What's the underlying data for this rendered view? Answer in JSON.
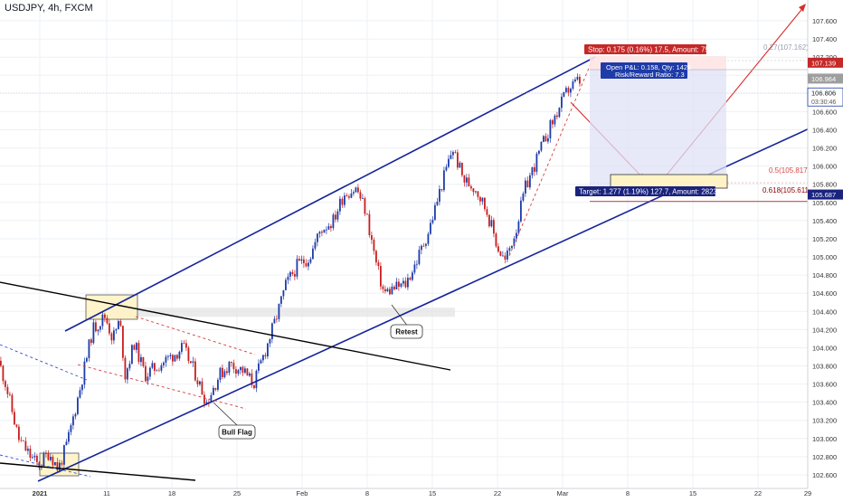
{
  "header": {
    "symbol": "USDJPY, 4h, FXCM"
  },
  "colors": {
    "up": "#1e3ba8",
    "down": "#c81e1e",
    "channel": "#14249a",
    "wedge": "#000000",
    "stop_bg": "#c62828",
    "target_bg": "#1a237e",
    "grid": "#eef0f4",
    "axis_text": "#333333"
  },
  "chart_data": {
    "type": "candlestick",
    "symbol": "USDJPY",
    "timeframe": "4h",
    "ylim": [
      102.45,
      107.72
    ],
    "y_ticks": [
      "107.600",
      "107.400",
      "107.200",
      "107.000",
      "106.800",
      "106.600",
      "106.400",
      "106.200",
      "106.000",
      "105.800",
      "105.600",
      "105.400",
      "105.200",
      "105.000",
      "104.800",
      "104.600",
      "104.400",
      "104.200",
      "104.000",
      "103.800",
      "103.600",
      "103.400",
      "103.200",
      "103.000",
      "102.800",
      "102.600"
    ],
    "x_ticks": [
      "2021",
      "11",
      "18",
      "25",
      "Feb",
      "8",
      "15",
      "22",
      "Mar",
      "8",
      "15",
      "22",
      "29"
    ],
    "price_labels": [
      {
        "text": "107.139",
        "style": "stop"
      },
      {
        "text": "106.964",
        "style": "grey"
      },
      {
        "text": "106.806",
        "style": "current"
      },
      {
        "text": "03:30:46",
        "style": "countdown"
      },
      {
        "text": "105.687",
        "style": "target"
      }
    ],
    "candle_path": [
      [
        -2,
        103.92
      ],
      [
        8,
        103.6
      ],
      [
        22,
        103.0
      ],
      [
        34,
        102.82
      ],
      [
        44,
        102.7
      ],
      [
        56,
        102.85
      ],
      [
        66,
        102.66
      ],
      [
        76,
        102.95
      ],
      [
        90,
        103.55
      ],
      [
        104,
        104.2
      ],
      [
        118,
        104.35
      ],
      [
        126,
        104.1
      ],
      [
        134,
        104.3
      ],
      [
        140,
        103.7
      ],
      [
        150,
        104.05
      ],
      [
        162,
        103.7
      ],
      [
        176,
        103.8
      ],
      [
        190,
        103.9
      ],
      [
        204,
        104.0
      ],
      [
        216,
        103.75
      ],
      [
        230,
        103.4
      ],
      [
        244,
        103.7
      ],
      [
        256,
        103.82
      ],
      [
        270,
        103.75
      ],
      [
        282,
        103.6
      ],
      [
        296,
        104.0
      ],
      [
        306,
        104.3
      ],
      [
        318,
        104.7
      ],
      [
        330,
        104.9
      ],
      [
        344,
        105.0
      ],
      [
        356,
        105.3
      ],
      [
        370,
        105.4
      ],
      [
        382,
        105.7
      ],
      [
        396,
        105.75
      ],
      [
        406,
        105.5
      ],
      [
        418,
        104.9
      ],
      [
        426,
        104.6
      ],
      [
        436,
        104.65
      ],
      [
        450,
        104.7
      ],
      [
        462,
        104.95
      ],
      [
        476,
        105.3
      ],
      [
        490,
        105.8
      ],
      [
        502,
        106.2
      ],
      [
        514,
        105.85
      ],
      [
        528,
        105.75
      ],
      [
        540,
        105.5
      ],
      [
        552,
        105.1
      ],
      [
        560,
        104.95
      ],
      [
        572,
        105.3
      ],
      [
        582,
        105.75
      ],
      [
        594,
        106.05
      ],
      [
        606,
        106.35
      ],
      [
        618,
        106.6
      ],
      [
        630,
        106.85
      ],
      [
        640,
        106.93
      ]
    ],
    "annotations": [
      {
        "text": "Retest",
        "type": "callout"
      },
      {
        "text": "Bull Flag",
        "type": "callout"
      },
      {
        "text": "0.5(105.817)",
        "type": "fib"
      },
      {
        "text": "0.618(105.611)",
        "type": "fib"
      },
      {
        "text": "0.27(107.162)",
        "type": "fib"
      }
    ],
    "position": {
      "stop_text": "Stop: 0.175 (0.16%) 17.5, Amount: 750.1",
      "open_text": "Open P&L: 0.158, Qty: 1428",
      "rr_text": "Risk/Reward Ratio: 7.3",
      "target_text": "Target: 1.277 (1.19%) 127.7, Amount: 2823.56"
    },
    "grid": true,
    "legend": "none"
  }
}
